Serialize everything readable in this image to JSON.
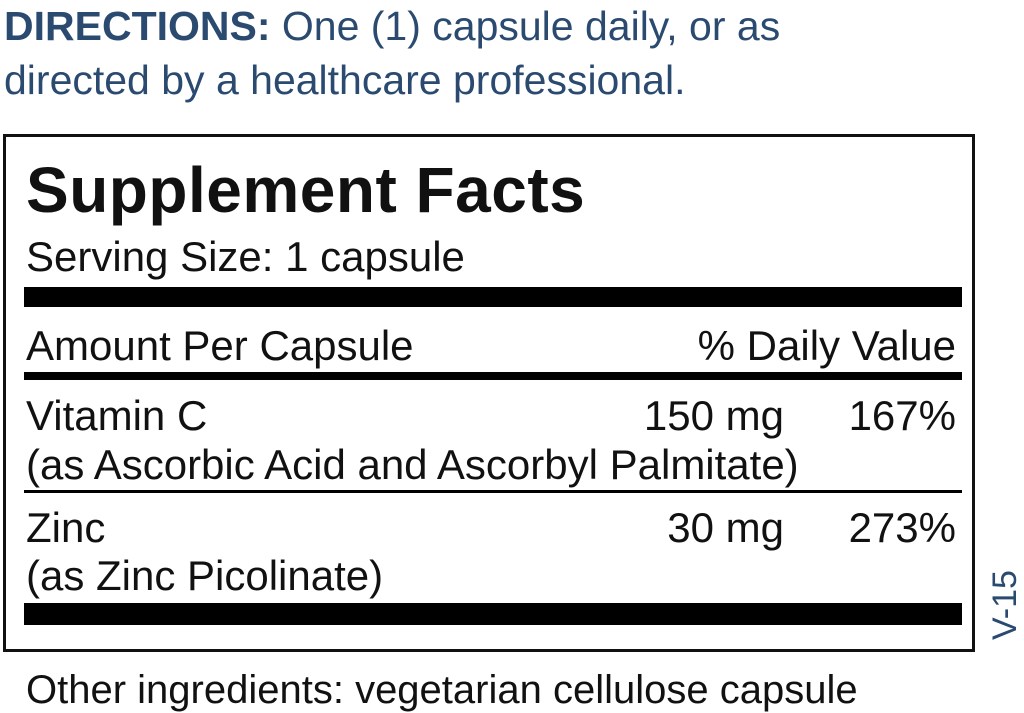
{
  "directions": {
    "label": "DIRECTIONS:",
    "line1": " One (1) capsule daily, or as",
    "line2": "directed by a healthcare professional."
  },
  "facts": {
    "title": "Supplement Facts",
    "serving_size": "Serving Size: 1 capsule",
    "header_left": "Amount Per Capsule",
    "header_right": "% Daily Value",
    "rows": [
      {
        "name": "Vitamin C",
        "amount": "150 mg",
        "dv": "167%",
        "source": "(as Ascorbic Acid and Ascorbyl Palmitate)"
      },
      {
        "name": "Zinc",
        "amount": "30 mg",
        "dv": "273%",
        "source": "(as Zinc Picolinate)"
      }
    ]
  },
  "version_code": "V-15",
  "other_ingredients": "Other ingredients: vegetarian cellulose capsule",
  "colors": {
    "accent": "#2b4a70",
    "text": "#111111"
  }
}
